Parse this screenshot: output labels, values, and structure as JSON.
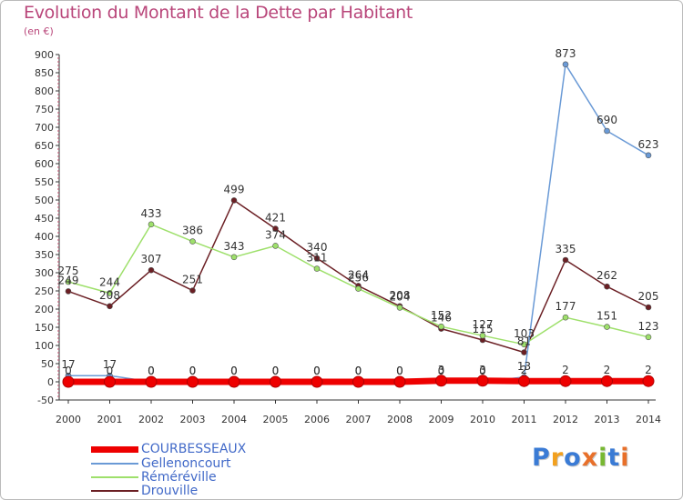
{
  "header": {
    "title": "Evolution du Montant de la Dette par Habitant",
    "subtitle": "(en €)"
  },
  "chart_data": {
    "type": "line",
    "title": "Evolution du Montant de la Dette par Habitant",
    "subtitle": "(en €)",
    "xlabel": "",
    "ylabel": "",
    "ylim": [
      -50,
      900
    ],
    "yticks": [
      -50,
      0,
      50,
      100,
      150,
      200,
      250,
      300,
      350,
      400,
      450,
      500,
      550,
      600,
      650,
      700,
      750,
      800,
      850,
      900
    ],
    "grid": false,
    "legend_position": "bottom-left",
    "x": [
      "2000",
      "2001",
      "2002",
      "2003",
      "2004",
      "2005",
      "2006",
      "2007",
      "2008",
      "2009",
      "2010",
      "2011",
      "2012",
      "2013",
      "2014"
    ],
    "series": [
      {
        "name": "COURBESSEAUX",
        "color": "#ee0000",
        "values": [
          0,
          0,
          0,
          0,
          0,
          0,
          0,
          0,
          0,
          3,
          3,
          2,
          2,
          2,
          2
        ],
        "labels": [
          "0",
          "0",
          "0",
          "0",
          "0",
          "0",
          "0",
          "0",
          "0",
          "3",
          "3",
          "2",
          "2",
          "2",
          "2"
        ]
      },
      {
        "name": "Gellenoncourt",
        "color": "#6a9ad6",
        "values": [
          17,
          17,
          0,
          0,
          0,
          0,
          0,
          0,
          0,
          0,
          0,
          13,
          873,
          690,
          623
        ],
        "labels": [
          "17",
          "17",
          "0",
          "0",
          "0",
          "0",
          "0",
          "0",
          "0",
          "0",
          "0",
          "13",
          "873",
          "690",
          "623"
        ]
      },
      {
        "name": "Réméréville",
        "color": "#9ee06b",
        "values": [
          275,
          244,
          433,
          386,
          343,
          374,
          311,
          256,
          204,
          152,
          127,
          103,
          177,
          151,
          123
        ],
        "labels": [
          "275",
          "244",
          "433",
          "386",
          "343",
          "374",
          "311",
          "256",
          "204",
          "152",
          "127",
          "103",
          "177",
          "151",
          "123"
        ]
      },
      {
        "name": "Drouville",
        "color": "#6b1f24",
        "values": [
          249,
          208,
          307,
          251,
          499,
          421,
          340,
          264,
          208,
          146,
          115,
          81,
          335,
          262,
          205
        ],
        "labels": [
          "249",
          "208",
          "307",
          "251",
          "499",
          "421",
          "340",
          "264",
          "208",
          "146",
          "115",
          "81",
          "335",
          "262",
          "205"
        ]
      }
    ]
  },
  "legend": {
    "items": [
      {
        "label": "COURBESSEAUX",
        "color": "#ee0000",
        "label_color": "#4169c8"
      },
      {
        "label": "Gellenoncourt",
        "color": "#6a9ad6",
        "label_color": "#4169c8"
      },
      {
        "label": "Réméréville",
        "color": "#9ee06b",
        "label_color": "#4169c8"
      },
      {
        "label": "Drouville",
        "color": "#6b1f24",
        "label_color": "#4169c8"
      }
    ]
  },
  "logo": {
    "text": "Proxiti",
    "icon": "proxiti-logo",
    "letter_colors": [
      "#3a7bd5",
      "#f2a01e",
      "#3a7bd5",
      "#e8702a",
      "#78b833",
      "#3a7bd5",
      "#e8702a"
    ]
  }
}
